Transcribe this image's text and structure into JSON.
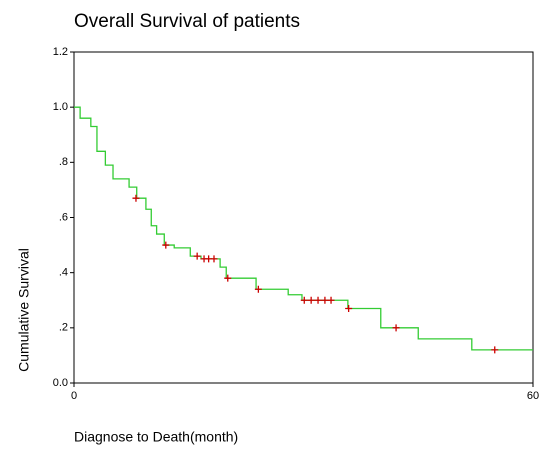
{
  "chart_data": {
    "type": "step",
    "title": "Overall Survival of patients",
    "x_label": "Diagnose to Death(month)",
    "y_label": "Cumulative Survival",
    "xlim": [
      0,
      60
    ],
    "xticks": [
      0,
      60
    ],
    "ylim": [
      0,
      1.2
    ],
    "yticks": [
      {
        "value": 0,
        "label": "0.0"
      },
      {
        "value": 0.2,
        "label": ".2"
      },
      {
        "value": 0.4,
        "label": ".4"
      },
      {
        "value": 0.6,
        "label": ".6"
      },
      {
        "value": 0.8,
        "label": ".8"
      },
      {
        "value": 1,
        "label": "1.0"
      },
      1.2
    ],
    "survival": {
      "color": "#33cc33",
      "x": [
        0,
        0.8,
        2.2,
        3.0,
        4.1,
        5.1,
        7.2,
        8.2,
        9.4,
        10.1,
        10.8,
        11.8,
        13.1,
        15.2,
        16.6,
        19.1,
        19.9,
        23.8,
        28.0,
        29.8,
        35.8,
        40.1,
        45.0,
        52.0,
        60
      ],
      "values": [
        1.0,
        0.96,
        0.93,
        0.84,
        0.79,
        0.74,
        0.71,
        0.67,
        0.63,
        0.57,
        0.54,
        0.5,
        0.49,
        0.46,
        0.45,
        0.42,
        0.38,
        0.34,
        0.32,
        0.3,
        0.27,
        0.2,
        0.16,
        0.12,
        0.12
      ]
    },
    "censored": {
      "color": "#cc0000",
      "x": [
        8.1,
        12.0,
        16.1,
        17.0,
        17.6,
        18.3,
        20.1,
        24.1,
        30.1,
        31.0,
        31.9,
        32.8,
        33.6,
        35.9,
        42.1,
        55.0
      ],
      "values": [
        0.67,
        0.5,
        0.46,
        0.45,
        0.45,
        0.45,
        0.38,
        0.34,
        0.3,
        0.3,
        0.3,
        0.3,
        0.3,
        0.27,
        0.2,
        0.12
      ]
    }
  }
}
